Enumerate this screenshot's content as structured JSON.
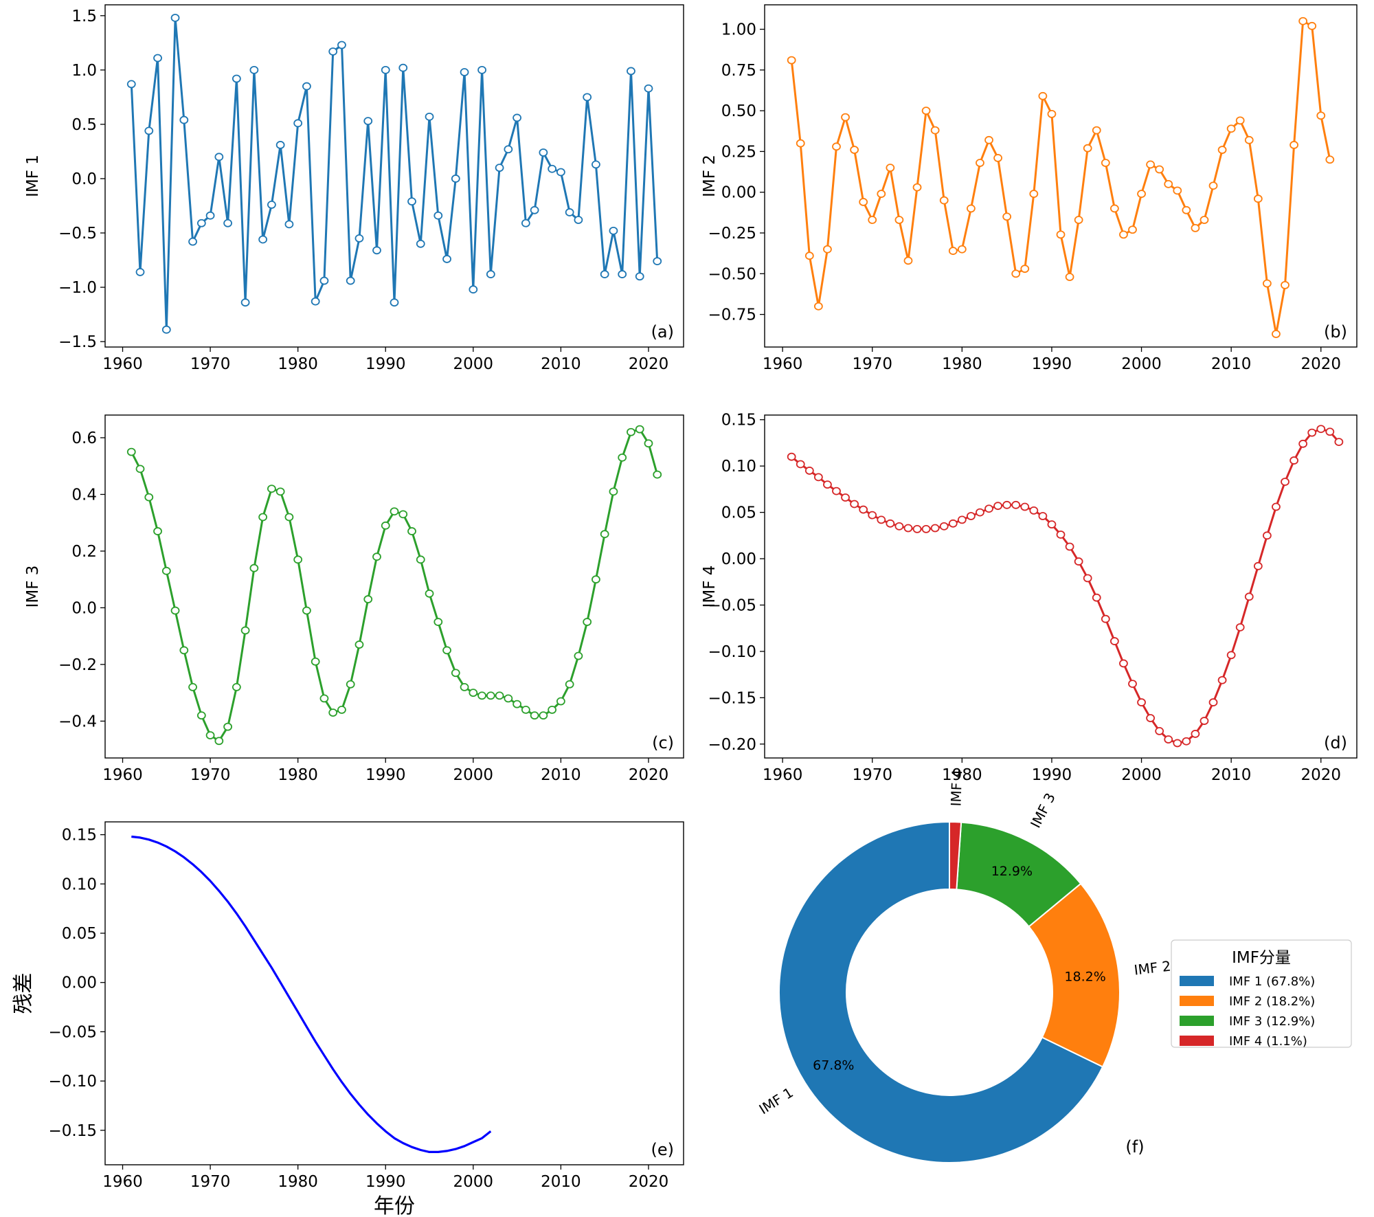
{
  "chart_data": [
    {
      "id": "a",
      "type": "line",
      "panel_label": "(a)",
      "xlabel": "",
      "ylabel": "IMF 1",
      "xlim": [
        1958,
        2024
      ],
      "ylim": [
        -1.55,
        1.6
      ],
      "xticks": [
        1960,
        1970,
        1980,
        1990,
        2000,
        2010,
        2020
      ],
      "xtick_labels": [
        "1960",
        "1970",
        "1980",
        "1990",
        "2000",
        "2010",
        "2020"
      ],
      "yticks": [
        -1.5,
        -1.0,
        -0.5,
        0.0,
        0.5,
        1.0,
        1.5
      ],
      "ytick_labels": [
        "−1.5",
        "−1.0",
        "−0.5",
        "0.0",
        "0.5",
        "1.0",
        "1.5"
      ],
      "color": "#1f77b4",
      "markers": true,
      "x_start": 1961,
      "values": [
        0.87,
        -0.86,
        0.44,
        1.11,
        -1.39,
        1.48,
        0.54,
        -0.58,
        -0.41,
        -0.34,
        0.2,
        -0.41,
        0.92,
        -1.14,
        1.0,
        -0.56,
        -0.24,
        0.31,
        -0.42,
        0.51,
        0.85,
        -1.13,
        -0.94,
        1.17,
        1.23,
        -0.94,
        -0.55,
        0.53,
        -0.66,
        1.0,
        -1.14,
        1.02,
        -0.21,
        -0.6,
        0.57,
        -0.34,
        -0.74,
        0.0,
        0.98,
        -1.02,
        1.0,
        -0.88,
        0.1,
        0.27,
        0.56,
        -0.41,
        -0.29,
        0.24,
        0.09,
        0.06,
        -0.31,
        -0.38,
        0.75,
        0.13,
        -0.88,
        -0.48,
        -0.88,
        0.99,
        -0.9,
        0.83,
        -0.76
      ]
    },
    {
      "id": "b",
      "type": "line",
      "panel_label": "(b)",
      "xlabel": "",
      "ylabel": "IMF 2",
      "xlim": [
        1958,
        2024
      ],
      "ylim": [
        -0.95,
        1.15
      ],
      "xticks": [
        1960,
        1970,
        1980,
        1990,
        2000,
        2010,
        2020
      ],
      "xtick_labels": [
        "1960",
        "1970",
        "1980",
        "1990",
        "2000",
        "2010",
        "2020"
      ],
      "yticks": [
        -0.75,
        -0.5,
        -0.25,
        0.0,
        0.25,
        0.5,
        0.75,
        1.0
      ],
      "ytick_labels": [
        "−0.75",
        "−0.50",
        "−0.25",
        "0.00",
        "0.25",
        "0.50",
        "0.75",
        "1.00"
      ],
      "color": "#ff7f0e",
      "markers": true,
      "x_start": 1961,
      "values": [
        0.81,
        0.3,
        -0.39,
        -0.7,
        -0.35,
        0.28,
        0.46,
        0.26,
        -0.06,
        -0.17,
        -0.01,
        0.15,
        -0.17,
        -0.42,
        0.03,
        0.5,
        0.38,
        -0.05,
        -0.36,
        -0.35,
        -0.1,
        0.18,
        0.32,
        0.21,
        -0.15,
        -0.5,
        -0.47,
        -0.01,
        0.59,
        0.48,
        -0.26,
        -0.52,
        -0.17,
        0.27,
        0.38,
        0.18,
        -0.1,
        -0.26,
        -0.23,
        -0.01,
        0.17,
        0.14,
        0.05,
        0.01,
        -0.11,
        -0.22,
        -0.17,
        0.04,
        0.26,
        0.39,
        0.44,
        0.32,
        -0.04,
        -0.56,
        -0.87,
        -0.57,
        0.29,
        1.05,
        1.02,
        0.47,
        0.2
      ]
    },
    {
      "id": "c",
      "type": "line",
      "panel_label": "(c)",
      "xlabel": "",
      "ylabel": "IMF 3",
      "xlim": [
        1958,
        2024
      ],
      "ylim": [
        -0.53,
        0.68
      ],
      "xticks": [
        1960,
        1970,
        1980,
        1990,
        2000,
        2010,
        2020
      ],
      "xtick_labels": [
        "1960",
        "1970",
        "1980",
        "1990",
        "2000",
        "2010",
        "2020"
      ],
      "yticks": [
        -0.4,
        -0.2,
        0.0,
        0.2,
        0.4,
        0.6
      ],
      "ytick_labels": [
        "−0.4",
        "−0.2",
        "0.0",
        "0.2",
        "0.4",
        "0.6"
      ],
      "color": "#2ca02c",
      "markers": true,
      "x_start": 1961,
      "values": [
        0.55,
        0.49,
        0.39,
        0.27,
        0.13,
        -0.01,
        -0.15,
        -0.28,
        -0.38,
        -0.45,
        -0.47,
        -0.42,
        -0.28,
        -0.08,
        0.14,
        0.32,
        0.42,
        0.41,
        0.32,
        0.17,
        -0.01,
        -0.19,
        -0.32,
        -0.37,
        -0.36,
        -0.27,
        -0.13,
        0.03,
        0.18,
        0.29,
        0.34,
        0.33,
        0.27,
        0.17,
        0.05,
        -0.05,
        -0.15,
        -0.23,
        -0.28,
        -0.3,
        -0.31,
        -0.31,
        -0.31,
        -0.32,
        -0.34,
        -0.36,
        -0.38,
        -0.38,
        -0.36,
        -0.33,
        -0.27,
        -0.17,
        -0.05,
        0.1,
        0.26,
        0.41,
        0.53,
        0.62,
        0.63,
        0.58,
        0.47
      ]
    },
    {
      "id": "d",
      "type": "line",
      "panel_label": "(d)",
      "xlabel": "",
      "ylabel": "IMF 4",
      "xlim": [
        1958,
        2024
      ],
      "ylim": [
        -0.215,
        0.155
      ],
      "xticks": [
        1960,
        1970,
        1980,
        1990,
        2000,
        2010,
        2020
      ],
      "xtick_labels": [
        "1960",
        "1970",
        "1980",
        "1990",
        "2000",
        "2010",
        "2020"
      ],
      "yticks": [
        -0.2,
        -0.15,
        -0.1,
        -0.05,
        0.0,
        0.05,
        0.1,
        0.15
      ],
      "ytick_labels": [
        "−0.20",
        "−0.15",
        "−0.10",
        "−0.05",
        "0.00",
        "0.05",
        "0.10",
        "0.15"
      ],
      "color": "#d62728",
      "markers": true,
      "x_start": 1961,
      "values": [
        0.11,
        0.102,
        0.095,
        0.088,
        0.08,
        0.073,
        0.066,
        0.059,
        0.053,
        0.047,
        0.042,
        0.038,
        0.035,
        0.033,
        0.032,
        0.032,
        0.033,
        0.035,
        0.038,
        0.042,
        0.046,
        0.05,
        0.054,
        0.057,
        0.058,
        0.058,
        0.056,
        0.052,
        0.046,
        0.037,
        0.026,
        0.013,
        -0.003,
        -0.021,
        -0.042,
        -0.065,
        -0.089,
        -0.113,
        -0.135,
        -0.155,
        -0.172,
        -0.186,
        -0.195,
        -0.199,
        -0.197,
        -0.189,
        -0.175,
        -0.155,
        -0.131,
        -0.104,
        -0.074,
        -0.041,
        -0.008,
        0.025,
        0.056,
        0.083,
        0.106,
        0.124,
        0.136,
        0.14,
        0.137,
        0.126
      ]
    },
    {
      "id": "e",
      "type": "line",
      "panel_label": "(e)",
      "xlabel": "年份",
      "ylabel": "残差",
      "xlim": [
        1958,
        2024
      ],
      "ylim": [
        -0.185,
        0.163
      ],
      "xticks": [
        1960,
        1970,
        1980,
        1990,
        2000,
        2010,
        2020
      ],
      "xtick_labels": [
        "1960",
        "1970",
        "1980",
        "1990",
        "2000",
        "2010",
        "2020"
      ],
      "yticks": [
        -0.15,
        -0.1,
        -0.05,
        0.0,
        0.05,
        0.1,
        0.15
      ],
      "ytick_labels": [
        "−0.15",
        "−0.10",
        "−0.05",
        "0.00",
        "0.05",
        "0.10",
        "0.15"
      ],
      "color": "#0000ff",
      "markers": false,
      "x_start": 1961,
      "values": [
        0.148,
        0.147,
        0.145,
        0.142,
        0.138,
        0.133,
        0.127,
        0.12,
        0.112,
        0.103,
        0.093,
        0.082,
        0.07,
        0.057,
        0.043,
        0.029,
        0.015,
        0.0,
        -0.015,
        -0.03,
        -0.045,
        -0.06,
        -0.074,
        -0.088,
        -0.101,
        -0.113,
        -0.124,
        -0.134,
        -0.143,
        -0.151,
        -0.158,
        -0.163,
        -0.167,
        -0.17,
        -0.172,
        -0.172,
        -0.171,
        -0.169,
        -0.166,
        -0.162,
        -0.158,
        -0.151
      ]
    },
    {
      "id": "f",
      "type": "pie",
      "donut": true,
      "panel_label": "(f)",
      "labels": [
        "IMF 1",
        "IMF 2",
        "IMF 3",
        "IMF 4"
      ],
      "values": [
        67.8,
        18.2,
        12.9,
        1.1
      ],
      "pct_labels": [
        "67.8%",
        "18.2%",
        "12.9%",
        ""
      ],
      "colors": [
        "#1f77b4",
        "#ff7f0e",
        "#2ca02c",
        "#d62728"
      ],
      "legend_title": "IMF分量",
      "legend_entries": [
        "IMF 1 (67.8%)",
        "IMF 2 (18.2%)",
        "IMF 3 (12.9%)",
        "IMF 4 (1.1%)"
      ],
      "legend_position": "right"
    }
  ]
}
